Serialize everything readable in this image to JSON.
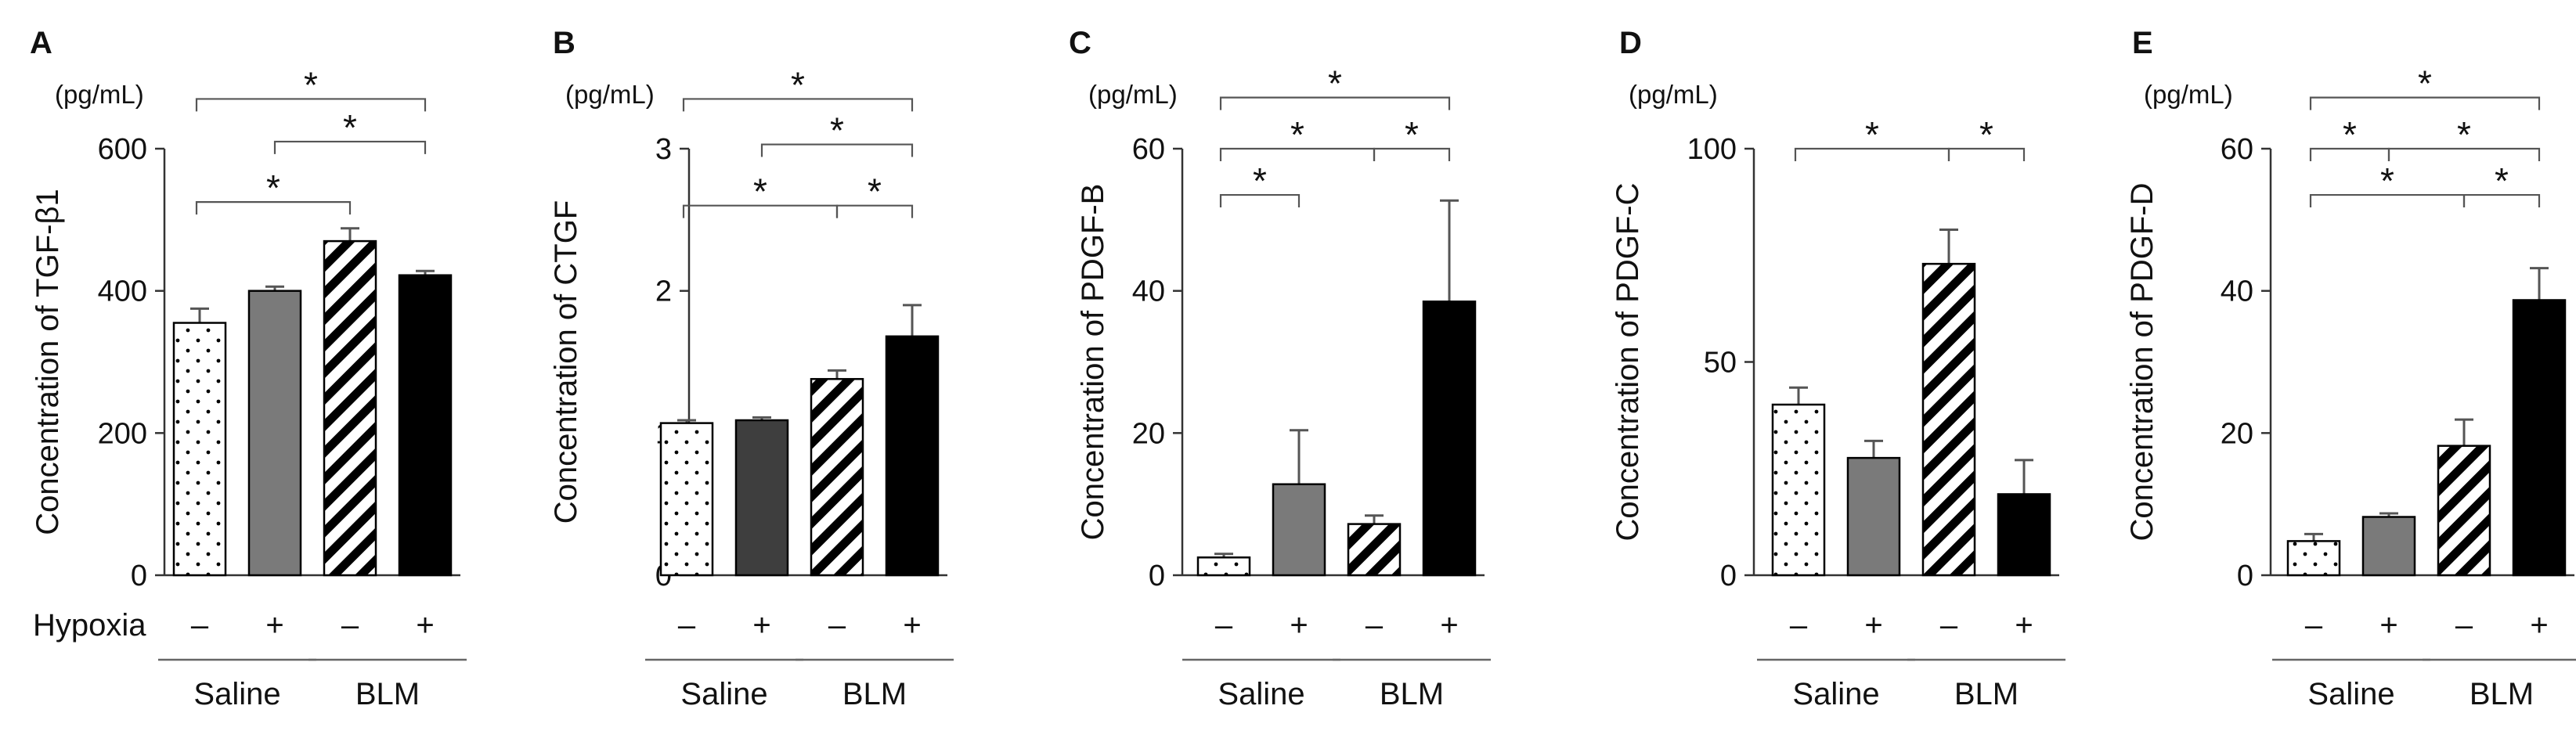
{
  "hypoxia_label": "Hypoxia",
  "group_labels": [
    "Saline",
    "BLM"
  ],
  "condition_signs": [
    "–",
    "+",
    "–",
    "+"
  ],
  "bar_styles": [
    "dots",
    "gray",
    "hatch",
    "black"
  ],
  "colors": {
    "gray": "#7a7a7a",
    "dark_gray": "#3e3e3e",
    "black": "#000000",
    "axis": "#333333",
    "bracket": "#555555"
  },
  "chart_data": [
    {
      "type": "bar",
      "panel": "A",
      "unit": "(pg/mL)",
      "ylabel": "Concentration of TGF-β1",
      "ylim": [
        0,
        600
      ],
      "yticks": [
        0,
        200,
        400,
        600
      ],
      "categories": [
        "Saline –",
        "Saline +",
        "BLM –",
        "BLM +"
      ],
      "values": [
        355,
        400,
        470,
        422
      ],
      "errors": [
        20,
        6,
        18,
        6
      ],
      "bar_colors": [
        "#ffffff",
        "#7a7a7a",
        "hatch",
        "#000000"
      ],
      "significance": [
        {
          "from": 0,
          "to": 2,
          "y": 525,
          "label": "*"
        },
        {
          "from": 1,
          "to": 3,
          "y": 610,
          "label": "*"
        },
        {
          "from": 0,
          "to": 3,
          "y": 670,
          "label": "*"
        }
      ]
    },
    {
      "type": "bar",
      "panel": "B",
      "unit": "(pg/mL)",
      "ylabel": "Concentration of CTGF",
      "ylim": [
        0,
        3
      ],
      "yticks": [
        0,
        1,
        2,
        3
      ],
      "categories": [
        "Saline –",
        "Saline +",
        "BLM –",
        "BLM +"
      ],
      "values": [
        1.07,
        1.09,
        1.38,
        1.68
      ],
      "errors": [
        0.02,
        0.02,
        0.06,
        0.22
      ],
      "bar_colors": [
        "#ffffff",
        "#3e3e3e",
        "hatch",
        "#000000"
      ],
      "significance": [
        {
          "from": 2,
          "to": 3,
          "y": 2.6,
          "label": "*"
        },
        {
          "from": 0,
          "to": 2,
          "y": 2.6,
          "label": "*"
        },
        {
          "from": 1,
          "to": 3,
          "y": 3.03,
          "label": "*"
        },
        {
          "from": 0,
          "to": 3,
          "y": 3.35,
          "label": "*"
        }
      ]
    },
    {
      "type": "bar",
      "panel": "C",
      "unit": "(pg/mL)",
      "ylabel": "Concentration of PDGF-B",
      "ylim": [
        0,
        60
      ],
      "yticks": [
        0,
        20,
        40,
        60
      ],
      "categories": [
        "Saline –",
        "Saline +",
        "BLM –",
        "BLM +"
      ],
      "values": [
        2.5,
        12.8,
        7.2,
        38.5
      ],
      "errors": [
        0.5,
        7.6,
        1.2,
        14.2
      ],
      "bar_colors": [
        "#ffffff",
        "#7a7a7a",
        "hatch",
        "#000000"
      ],
      "significance": [
        {
          "from": 0,
          "to": 1,
          "y": 53.5,
          "label": "*"
        },
        {
          "from": 0,
          "to": 2,
          "y": 60,
          "label": "*"
        },
        {
          "from": 2,
          "to": 3,
          "y": 60,
          "label": "*"
        },
        {
          "from": 0,
          "to": 3,
          "y": 67.2,
          "label": "*"
        }
      ]
    },
    {
      "type": "bar",
      "panel": "D",
      "unit": "(pg/mL)",
      "ylabel": "Concentration of PDGF-C",
      "ylim": [
        0,
        100
      ],
      "yticks": [
        0,
        50,
        100
      ],
      "categories": [
        "Saline –",
        "Saline +",
        "BLM –",
        "BLM +"
      ],
      "values": [
        40,
        27.5,
        73,
        19
      ],
      "errors": [
        4,
        4,
        8,
        8
      ],
      "bar_colors": [
        "#ffffff",
        "#7a7a7a",
        "hatch",
        "#000000"
      ],
      "significance": [
        {
          "from": 0,
          "to": 2,
          "y": 100,
          "label": "*"
        },
        {
          "from": 2,
          "to": 3,
          "y": 100,
          "label": "*"
        }
      ]
    },
    {
      "type": "bar",
      "panel": "E",
      "unit": "(pg/mL)",
      "ylabel": "Concentration of PDGF-D",
      "ylim": [
        0,
        60
      ],
      "yticks": [
        0,
        20,
        40,
        60
      ],
      "categories": [
        "Saline –",
        "Saline +",
        "BLM –",
        "BLM +"
      ],
      "values": [
        4.8,
        8.2,
        18.2,
        38.7
      ],
      "errors": [
        1.0,
        0.5,
        3.7,
        4.5
      ],
      "bar_colors": [
        "#ffffff",
        "#7a7a7a",
        "hatch",
        "#000000"
      ],
      "significance": [
        {
          "from": 0,
          "to": 2,
          "y": 53.5,
          "label": "*"
        },
        {
          "from": 2,
          "to": 3,
          "y": 53.5,
          "label": "*"
        },
        {
          "from": 0,
          "to": 1,
          "y": 60,
          "label": "*"
        },
        {
          "from": 1,
          "to": 3,
          "y": 60,
          "label": "*"
        },
        {
          "from": 0,
          "to": 3,
          "y": 67.2,
          "label": "*"
        }
      ]
    }
  ]
}
